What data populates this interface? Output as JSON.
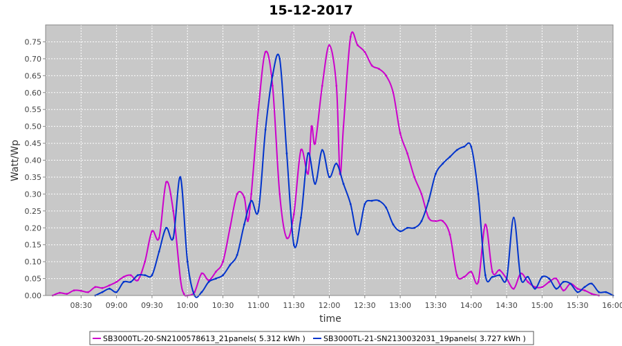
{
  "chart_data": {
    "type": "line",
    "title": "15-12-2017",
    "xlabel": "time",
    "ylabel": "Watt/Wp",
    "x_unit": "hours of day",
    "xlim": [
      8.0,
      16.0
    ],
    "ylim": [
      0.0,
      0.8
    ],
    "x_ticks": [
      8.5,
      9.0,
      9.5,
      10.0,
      10.5,
      11.0,
      11.5,
      12.0,
      12.5,
      13.0,
      13.5,
      14.0,
      14.5,
      15.0,
      15.5,
      16.0
    ],
    "x_tick_labels": [
      "08:30",
      "09:00",
      "09:30",
      "10:00",
      "10:30",
      "11:00",
      "11:30",
      "12:00",
      "12:30",
      "13:00",
      "13:30",
      "14:00",
      "14:30",
      "15:00",
      "15:30",
      "16:00"
    ],
    "y_ticks": [
      0.0,
      0.05,
      0.1,
      0.15,
      0.2,
      0.25,
      0.3,
      0.35,
      0.4,
      0.45,
      0.5,
      0.55,
      0.6,
      0.65,
      0.7,
      0.75
    ],
    "y_tick_labels": [
      "0.00",
      "0.05",
      "0.10",
      "0.15",
      "0.20",
      "0.25",
      "0.30",
      "0.35",
      "0.40",
      "0.45",
      "0.50",
      "0.55",
      "0.60",
      "0.65",
      "0.70",
      "0.75"
    ],
    "grid": true,
    "legend_position": "bottom",
    "colors": {
      "plot_bg": "#c8c8c8",
      "grid": "#ffffff"
    },
    "series": [
      {
        "name": "SB3000TL-20-SN2100578613_21panels( 5.312 kWh )",
        "color": "#cc00cc",
        "points": [
          [
            8.1,
            0.0
          ],
          [
            8.2,
            0.008
          ],
          [
            8.3,
            0.005
          ],
          [
            8.4,
            0.015
          ],
          [
            8.5,
            0.014
          ],
          [
            8.6,
            0.01
          ],
          [
            8.7,
            0.025
          ],
          [
            8.8,
            0.022
          ],
          [
            8.9,
            0.03
          ],
          [
            9.0,
            0.04
          ],
          [
            9.1,
            0.055
          ],
          [
            9.2,
            0.06
          ],
          [
            9.3,
            0.045
          ],
          [
            9.4,
            0.1
          ],
          [
            9.5,
            0.19
          ],
          [
            9.6,
            0.17
          ],
          [
            9.7,
            0.335
          ],
          [
            9.8,
            0.25
          ],
          [
            9.9,
            0.05
          ],
          [
            9.95,
            0.005
          ],
          [
            10.0,
            0.0
          ],
          [
            10.1,
            0.01
          ],
          [
            10.2,
            0.065
          ],
          [
            10.3,
            0.045
          ],
          [
            10.4,
            0.07
          ],
          [
            10.5,
            0.1
          ],
          [
            10.6,
            0.2
          ],
          [
            10.7,
            0.3
          ],
          [
            10.8,
            0.29
          ],
          [
            10.85,
            0.22
          ],
          [
            10.9,
            0.3
          ],
          [
            11.0,
            0.55
          ],
          [
            11.1,
            0.72
          ],
          [
            11.2,
            0.62
          ],
          [
            11.3,
            0.3
          ],
          [
            11.4,
            0.17
          ],
          [
            11.5,
            0.24
          ],
          [
            11.6,
            0.43
          ],
          [
            11.7,
            0.36
          ],
          [
            11.75,
            0.5
          ],
          [
            11.8,
            0.45
          ],
          [
            11.9,
            0.62
          ],
          [
            12.0,
            0.74
          ],
          [
            12.1,
            0.62
          ],
          [
            12.15,
            0.36
          ],
          [
            12.2,
            0.5
          ],
          [
            12.3,
            0.765
          ],
          [
            12.4,
            0.74
          ],
          [
            12.5,
            0.72
          ],
          [
            12.6,
            0.68
          ],
          [
            12.7,
            0.67
          ],
          [
            12.8,
            0.65
          ],
          [
            12.9,
            0.6
          ],
          [
            13.0,
            0.48
          ],
          [
            13.1,
            0.42
          ],
          [
            13.2,
            0.35
          ],
          [
            13.3,
            0.3
          ],
          [
            13.4,
            0.23
          ],
          [
            13.5,
            0.22
          ],
          [
            13.6,
            0.22
          ],
          [
            13.7,
            0.18
          ],
          [
            13.8,
            0.06
          ],
          [
            13.9,
            0.055
          ],
          [
            14.0,
            0.07
          ],
          [
            14.1,
            0.04
          ],
          [
            14.2,
            0.21
          ],
          [
            14.3,
            0.07
          ],
          [
            14.4,
            0.075
          ],
          [
            14.5,
            0.05
          ],
          [
            14.6,
            0.02
          ],
          [
            14.7,
            0.065
          ],
          [
            14.8,
            0.04
          ],
          [
            14.9,
            0.025
          ],
          [
            15.0,
            0.025
          ],
          [
            15.1,
            0.04
          ],
          [
            15.2,
            0.05
          ],
          [
            15.3,
            0.015
          ],
          [
            15.4,
            0.035
          ],
          [
            15.5,
            0.02
          ],
          [
            15.6,
            0.015
          ],
          [
            15.7,
            0.005
          ],
          [
            15.8,
            0.0
          ]
        ]
      },
      {
        "name": "SB3000TL-21-SN2130032031_19panels( 3.727 kWh )",
        "color": "#0033cc",
        "points": [
          [
            8.7,
            0.0
          ],
          [
            8.8,
            0.01
          ],
          [
            8.9,
            0.02
          ],
          [
            9.0,
            0.01
          ],
          [
            9.1,
            0.04
          ],
          [
            9.2,
            0.04
          ],
          [
            9.3,
            0.06
          ],
          [
            9.4,
            0.06
          ],
          [
            9.5,
            0.06
          ],
          [
            9.6,
            0.13
          ],
          [
            9.7,
            0.2
          ],
          [
            9.8,
            0.17
          ],
          [
            9.9,
            0.35
          ],
          [
            10.0,
            0.1
          ],
          [
            10.1,
            0.0
          ],
          [
            10.2,
            0.01
          ],
          [
            10.3,
            0.04
          ],
          [
            10.4,
            0.05
          ],
          [
            10.5,
            0.06
          ],
          [
            10.6,
            0.09
          ],
          [
            10.7,
            0.12
          ],
          [
            10.8,
            0.21
          ],
          [
            10.9,
            0.28
          ],
          [
            11.0,
            0.25
          ],
          [
            11.1,
            0.49
          ],
          [
            11.2,
            0.65
          ],
          [
            11.3,
            0.7
          ],
          [
            11.4,
            0.42
          ],
          [
            11.5,
            0.15
          ],
          [
            11.6,
            0.23
          ],
          [
            11.7,
            0.42
          ],
          [
            11.8,
            0.33
          ],
          [
            11.9,
            0.43
          ],
          [
            12.0,
            0.35
          ],
          [
            12.1,
            0.39
          ],
          [
            12.2,
            0.33
          ],
          [
            12.3,
            0.27
          ],
          [
            12.4,
            0.18
          ],
          [
            12.5,
            0.27
          ],
          [
            12.6,
            0.28
          ],
          [
            12.7,
            0.28
          ],
          [
            12.8,
            0.26
          ],
          [
            12.9,
            0.21
          ],
          [
            13.0,
            0.19
          ],
          [
            13.1,
            0.2
          ],
          [
            13.2,
            0.2
          ],
          [
            13.3,
            0.22
          ],
          [
            13.4,
            0.28
          ],
          [
            13.5,
            0.36
          ],
          [
            13.6,
            0.39
          ],
          [
            13.7,
            0.41
          ],
          [
            13.8,
            0.43
          ],
          [
            13.9,
            0.44
          ],
          [
            14.0,
            0.44
          ],
          [
            14.1,
            0.3
          ],
          [
            14.2,
            0.06
          ],
          [
            14.3,
            0.055
          ],
          [
            14.4,
            0.06
          ],
          [
            14.5,
            0.05
          ],
          [
            14.6,
            0.23
          ],
          [
            14.7,
            0.05
          ],
          [
            14.8,
            0.055
          ],
          [
            14.9,
            0.02
          ],
          [
            15.0,
            0.055
          ],
          [
            15.1,
            0.05
          ],
          [
            15.2,
            0.02
          ],
          [
            15.3,
            0.04
          ],
          [
            15.4,
            0.035
          ],
          [
            15.5,
            0.01
          ],
          [
            15.6,
            0.025
          ],
          [
            15.7,
            0.035
          ],
          [
            15.8,
            0.01
          ],
          [
            15.9,
            0.01
          ],
          [
            16.0,
            0.0
          ]
        ]
      }
    ]
  }
}
